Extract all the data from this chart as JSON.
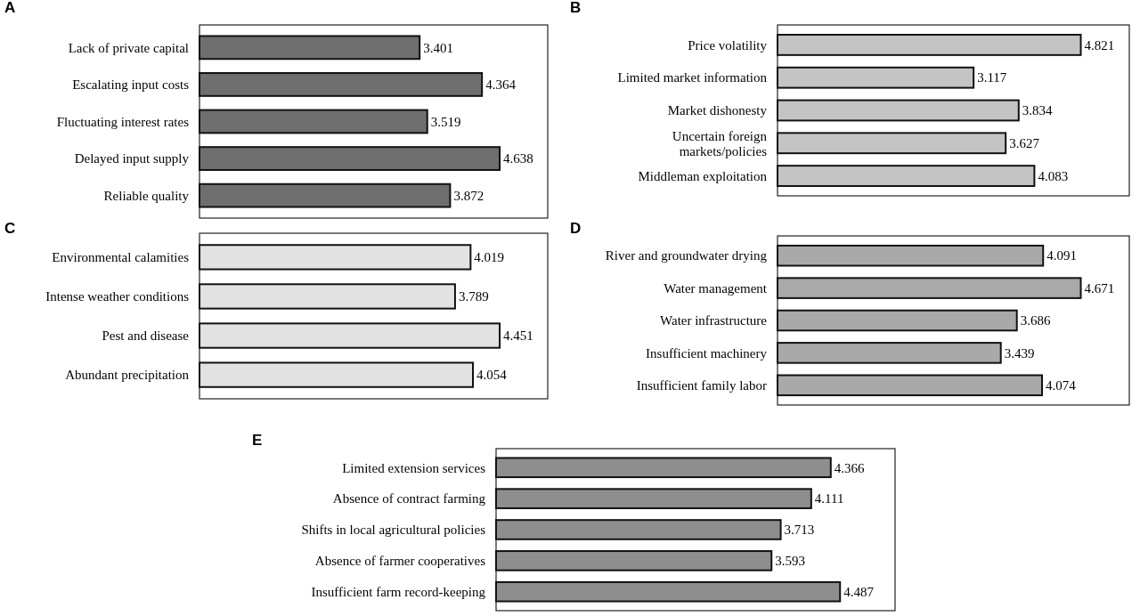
{
  "chart_data": [
    {
      "type": "bar",
      "orientation": "horizontal",
      "title": "A",
      "categories": [
        "Lack of private capital",
        "Escalating input costs",
        "Fluctuating interest rates",
        "Delayed input supply",
        "Reliable quality"
      ],
      "values": [
        3.401,
        4.364,
        3.519,
        4.638,
        3.872
      ],
      "color": "#6e6e6e",
      "data_labels": true
    },
    {
      "type": "bar",
      "orientation": "horizontal",
      "title": "B",
      "categories": [
        "Price volatility",
        "Limited market information",
        "Market dishonesty",
        "Uncertain foreign markets/policies",
        "Middleman exploitation"
      ],
      "values": [
        4.821,
        3.117,
        3.834,
        3.627,
        4.083
      ],
      "color": "#c4c4c4",
      "data_labels": true
    },
    {
      "type": "bar",
      "orientation": "horizontal",
      "title": "C",
      "categories": [
        "Environmental calamities",
        "Intense weather conditions",
        "Pest and disease",
        "Abundant precipitation"
      ],
      "values": [
        4.019,
        3.789,
        4.451,
        4.054
      ],
      "color": "#e2e2e2",
      "data_labels": true
    },
    {
      "type": "bar",
      "orientation": "horizontal",
      "title": "D",
      "categories": [
        "River and groundwater drying",
        "Water management",
        "Water infrastructure",
        "Insufficient machinery",
        "Insufficient family labor"
      ],
      "values": [
        4.091,
        4.671,
        3.686,
        3.439,
        4.074
      ],
      "color": "#a9a9a9",
      "data_labels": true
    },
    {
      "type": "bar",
      "orientation": "horizontal",
      "title": "E",
      "categories": [
        "Limited extension services",
        "Absence of contract farming",
        "Shifts in local agricultural policies",
        "Absence of farmer cooperatives",
        "Insufficient farm record-keeping"
      ],
      "values": [
        4.366,
        4.111,
        3.713,
        3.593,
        4.487
      ],
      "color": "#8e8e8e",
      "data_labels": true
    }
  ]
}
